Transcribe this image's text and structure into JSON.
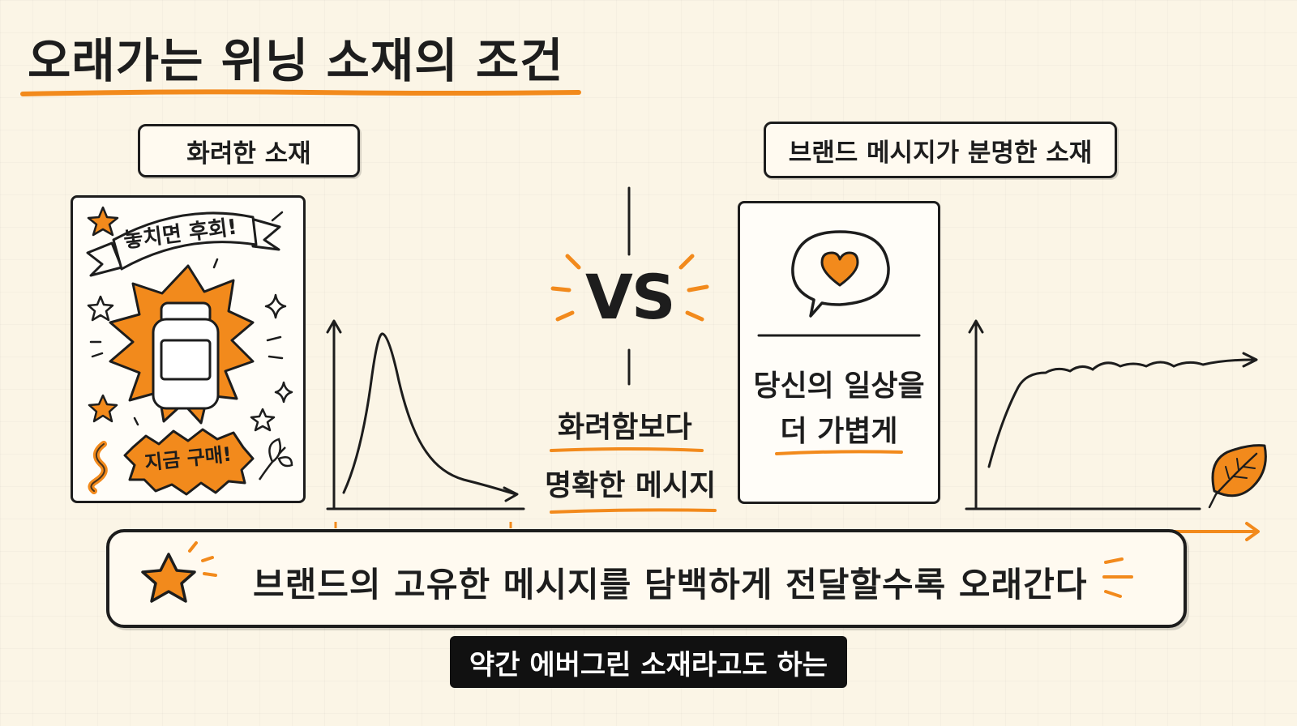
{
  "title": "오래가는 위닝 소재의 조건",
  "left": {
    "label": "화려한 소재",
    "banner_text": "놓치면 후회!",
    "buy_text": "지금 구매!"
  },
  "vs": "VS",
  "center": {
    "line1": "화려함보다",
    "line2": "명확한 메시지"
  },
  "right": {
    "label": "브랜드 메시지가 분명한 소재",
    "message_line1": "당신의 일상을",
    "message_line2": "더 가볍게"
  },
  "bottom_banner": "브랜드의 고유한 메시지를 담백하게 전달할수록 오래간다",
  "subtitle": "약간 에버그린 소재라고도 하는",
  "colors": {
    "accent": "#f28a1c",
    "ink": "#1d1d1d",
    "background": "#fbf5e6"
  },
  "icons": [
    "star-icon",
    "sparkle-icon",
    "product-bottle-icon",
    "speech-heart-icon",
    "leaf-icon",
    "ribbon-banner-icon"
  ]
}
